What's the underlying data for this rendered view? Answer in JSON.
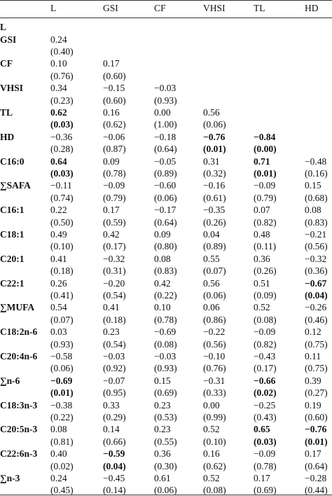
{
  "table": {
    "header": [
      "L",
      "GSI",
      "CF",
      "VHSI",
      "TL",
      "HD"
    ],
    "rows": [
      {
        "label": "L",
        "values": [],
        "p": [],
        "bold_values": [],
        "bold_p": []
      },
      {
        "label": "GSI",
        "values": [
          "0.24"
        ],
        "p": [
          "(0.40)"
        ],
        "bold_values": [],
        "bold_p": []
      },
      {
        "label": "CF",
        "values": [
          "0.10",
          "0.17"
        ],
        "p": [
          "(0.76)",
          "(0.60)"
        ],
        "bold_values": [],
        "bold_p": []
      },
      {
        "label": "VHSI",
        "values": [
          "0.34",
          "−0.15",
          "−0.03"
        ],
        "p": [
          "(0.23)",
          "(0.60)",
          "(0.93)"
        ],
        "bold_values": [],
        "bold_p": []
      },
      {
        "label": "TL",
        "values": [
          "0.62",
          "0.16",
          "0.00",
          "0.56"
        ],
        "p": [
          "(0.03)",
          "(0.62)",
          "(1.00)",
          "(0.06)"
        ],
        "bold_values": [
          0
        ],
        "bold_p": [
          0
        ]
      },
      {
        "label": "HD",
        "values": [
          "−0.36",
          "−0.06",
          "−0.18",
          "−0.76",
          "−0.84"
        ],
        "p": [
          "(0.28)",
          "(0.87)",
          "(0.64)",
          "(0.01)",
          "(0.00)"
        ],
        "bold_values": [
          3,
          4
        ],
        "bold_p": [
          3,
          4
        ]
      },
      {
        "label": "C16:0",
        "values": [
          "0.64",
          "0.09",
          "−0.05",
          "0.31",
          "0.71",
          "−0.48"
        ],
        "p": [
          "(0.03)",
          "(0.78)",
          "(0.89)",
          "(0.32)",
          "(0.01)",
          "(0.16)"
        ],
        "bold_values": [
          0,
          4
        ],
        "bold_p": [
          0,
          4
        ]
      },
      {
        "label": "∑SAFA",
        "values": [
          "−0.11",
          "−0.09",
          "−0.60",
          "−0.16",
          "−0.09",
          "0.15"
        ],
        "p": [
          "(0.74)",
          "(0.79)",
          "(0.06)",
          "(0.61)",
          "(0.79)",
          "(0.68)"
        ],
        "bold_values": [],
        "bold_p": []
      },
      {
        "label": "C16:1",
        "values": [
          "0.22",
          "0.17",
          "−0.17",
          "−0.35",
          "0.07",
          "0.08"
        ],
        "p": [
          "(0.50)",
          "(0.59)",
          "(0.64)",
          "(0.26)",
          "(0.82)",
          "(0.83)"
        ],
        "bold_values": [],
        "bold_p": []
      },
      {
        "label": "C18:1",
        "values": [
          "0.49",
          "0.42",
          "0.09",
          "0.04",
          "0.48",
          "−0.21"
        ],
        "p": [
          "(0.10)",
          "(0.17)",
          "(0.80)",
          "(0.89)",
          "(0.11)",
          "(0.56)"
        ],
        "bold_values": [],
        "bold_p": []
      },
      {
        "label": "C20:1",
        "values": [
          "0.41",
          "−0.32",
          "0.08",
          "0.55",
          "0.36",
          "−0.32"
        ],
        "p": [
          "(0.18)",
          "(0.31)",
          "(0.83)",
          "(0.07)",
          "(0.26)",
          "(0.36)"
        ],
        "bold_values": [],
        "bold_p": []
      },
      {
        "label": "C22:1",
        "values": [
          "0.26",
          "−0.20",
          "0.42",
          "0.56",
          "0.51",
          "−0.67"
        ],
        "p": [
          "(0.41)",
          "(0.54)",
          "(0.22)",
          "(0.06)",
          "(0.09)",
          "(0.04)"
        ],
        "bold_values": [
          5
        ],
        "bold_p": [
          5
        ]
      },
      {
        "label": "∑MUFA",
        "values": [
          "0.54",
          "0.41",
          "0.10",
          "0.06",
          "0.52",
          "−0.26"
        ],
        "p": [
          "(0.07)",
          "(0.18)",
          "(0.78)",
          "(0.86)",
          "(0.08)",
          "(0.46)"
        ],
        "bold_values": [],
        "bold_p": []
      },
      {
        "label": "C18:2n-6",
        "values": [
          "0.03",
          "0.23",
          "−0.69",
          "−0.22",
          "−0.09",
          "0.12"
        ],
        "p": [
          "(0.93)",
          "(0.54)",
          "(0.08)",
          "(0.56)",
          "(0.82)",
          "(0.75)"
        ],
        "bold_values": [],
        "bold_p": []
      },
      {
        "label": "C20:4n-6",
        "values": [
          "−0.58",
          "−0.03",
          "−0.03",
          "−0.10",
          "−0.43",
          "0.11"
        ],
        "p": [
          "(0.06)",
          "(0.92)",
          "(0.93)",
          "(0.76)",
          "(0.17)",
          "(0.75)"
        ],
        "bold_values": [],
        "bold_p": []
      },
      {
        "label": "∑n-6",
        "values": [
          "−0.69",
          "−0.07",
          "0.15",
          "−0.31",
          "−0.66",
          "0.39"
        ],
        "p": [
          "(0.01)",
          "(0.95)",
          "(0.69)",
          "(0.33)",
          "(0.02)",
          "(0.27)"
        ],
        "bold_values": [
          0,
          4
        ],
        "bold_p": [
          0,
          4
        ]
      },
      {
        "label": "C18:3n-3",
        "values": [
          "−0.38",
          "0.33",
          "0.23",
          "0.00",
          "−0.25",
          "0.19"
        ],
        "p": [
          "(0.22)",
          "(0.29)",
          "(0.53)",
          "(0.99)",
          "(0.43)",
          "(0.60)"
        ],
        "bold_values": [],
        "bold_p": []
      },
      {
        "label": "C20:5n-3",
        "values": [
          "0.08",
          "0.14",
          "0.23",
          "0.52",
          "0.65",
          "−0.76"
        ],
        "p": [
          "(0.81)",
          "(0.66)",
          "(0.55)",
          "(0.10)",
          "(0.03)",
          "(0.01)"
        ],
        "bold_values": [
          4,
          5
        ],
        "bold_p": [
          4,
          5
        ]
      },
      {
        "label": "C22:6n-3",
        "values": [
          "0.40",
          "−0.59",
          "0.36",
          "0.16",
          "−0.09",
          "0.17"
        ],
        "p": [
          "(0.02)",
          "(0.04)",
          "(0.30)",
          "(0.62)",
          "(0.78)",
          "(0.64)"
        ],
        "bold_values": [
          1
        ],
        "bold_p": [
          1
        ]
      },
      {
        "label": "∑n-3",
        "values": [
          "0.24",
          "−0.45",
          "0.61",
          "0.52",
          "0.17",
          "−0.28"
        ],
        "p": [
          "(0.45)",
          "(0.14)",
          "(0.06)",
          "(0.08)",
          "(0.69)",
          "(0.44)"
        ],
        "bold_values": [],
        "bold_p": []
      }
    ]
  }
}
